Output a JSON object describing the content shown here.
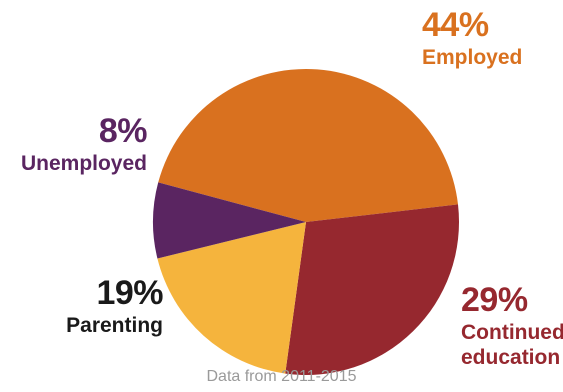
{
  "chart_data": {
    "type": "pie",
    "title": "",
    "slices": [
      {
        "label": "Employed",
        "value": 44,
        "value_label": "44%",
        "color": "#D9711F"
      },
      {
        "label": "Continued education",
        "label_lines": [
          "Continued",
          "education"
        ],
        "value": 29,
        "value_label": "29%",
        "color": "#96282F"
      },
      {
        "label": "Parenting",
        "value": 19,
        "value_label": "19%",
        "color": "#F5B43D"
      },
      {
        "label": "Unemployed",
        "value": 8,
        "value_label": "8%",
        "color": "#5A2561"
      }
    ],
    "label_colors": {
      "employed": "#D9711F",
      "continued": "#96282F",
      "parenting": "#1a1a1a",
      "unemployed": "#5A2561"
    },
    "footnote": "Data from 2011-2015"
  }
}
